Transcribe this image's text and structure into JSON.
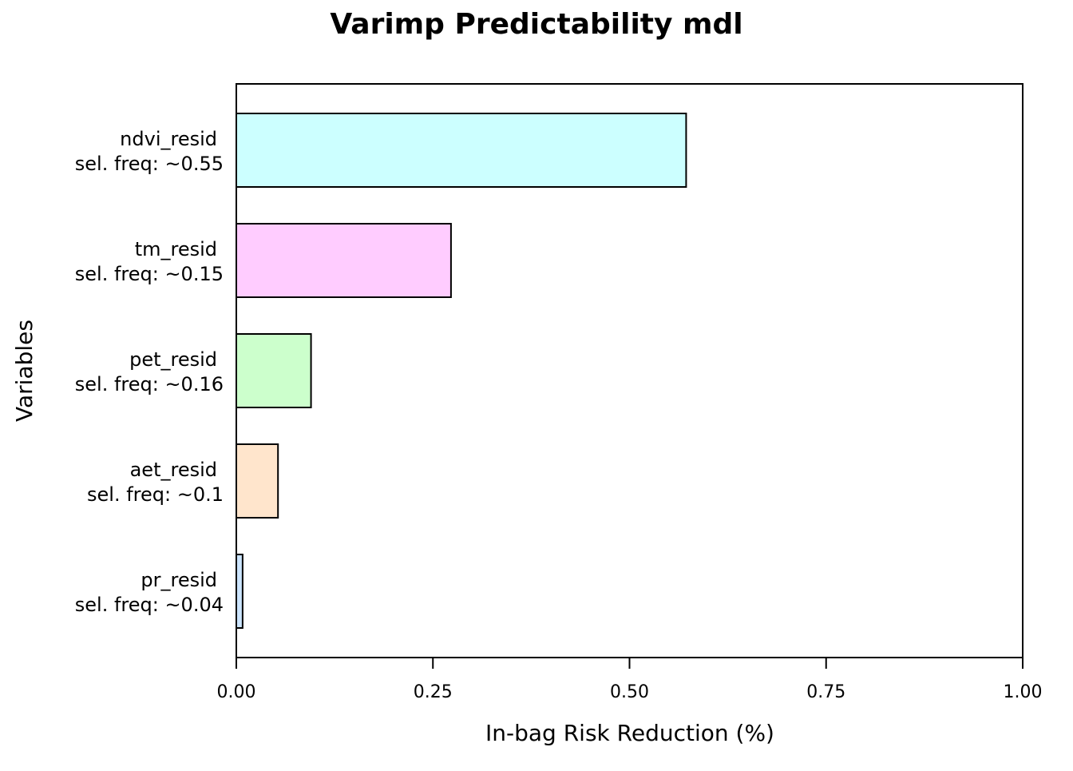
{
  "chart_data": {
    "type": "bar",
    "orientation": "horizontal",
    "title": "Varimp Predictability mdl",
    "xlabel": "In-bag Risk Reduction (%)",
    "ylabel": "Variables",
    "xlim": [
      0,
      1
    ],
    "xticks": [
      "0.00",
      "0.25",
      "0.50",
      "0.75",
      "1.00"
    ],
    "xtick_values": [
      0,
      0.25,
      0.5,
      0.75,
      1.0
    ],
    "grid": false,
    "legend": "none",
    "bars": [
      {
        "variable": "ndvi_resid",
        "freq_label": "sel. freq: ~0.55",
        "value": 0.572,
        "color": "#ccffff"
      },
      {
        "variable": "tm_resid",
        "freq_label": "sel. freq: ~0.15",
        "value": 0.273,
        "color": "#ffccff"
      },
      {
        "variable": "pet_resid",
        "freq_label": "sel. freq: ~0.16",
        "value": 0.095,
        "color": "#ccffcc"
      },
      {
        "variable": "aet_resid",
        "freq_label": "sel. freq: ~0.1",
        "value": 0.053,
        "color": "#ffe5cc"
      },
      {
        "variable": "pr_resid",
        "freq_label": "sel. freq: ~0.04",
        "value": 0.008,
        "color": "#cce5ff"
      }
    ]
  }
}
